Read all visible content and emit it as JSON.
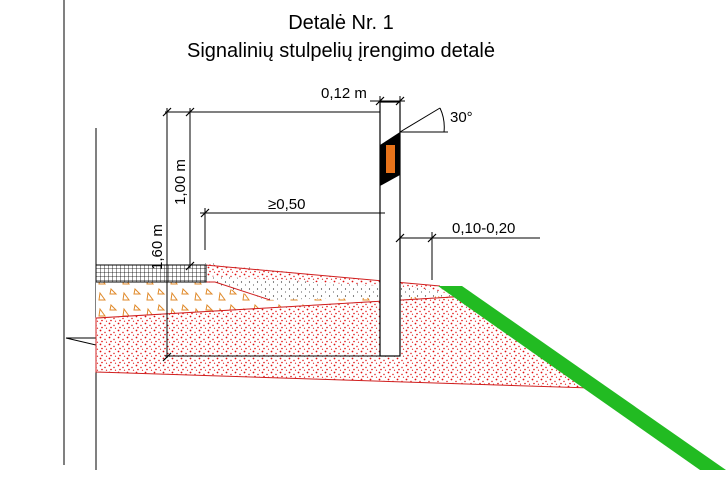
{
  "title": "Detalė Nr. 1",
  "subtitle": "Signalinių stulpelių įrengimo detalė",
  "dimensions": {
    "post_width": "0,12 m",
    "angle": "30°",
    "height_total": "1,60 m",
    "height_upper": "1,00 m",
    "distance_edge": "≥0,50",
    "distance_slope": "0,10-0,20"
  },
  "colors": {
    "reflector": "#e8731a",
    "slope": "#22bb22",
    "fill_dots": "#e01010",
    "triangles": "#e08a2a",
    "border": "#d02020"
  }
}
